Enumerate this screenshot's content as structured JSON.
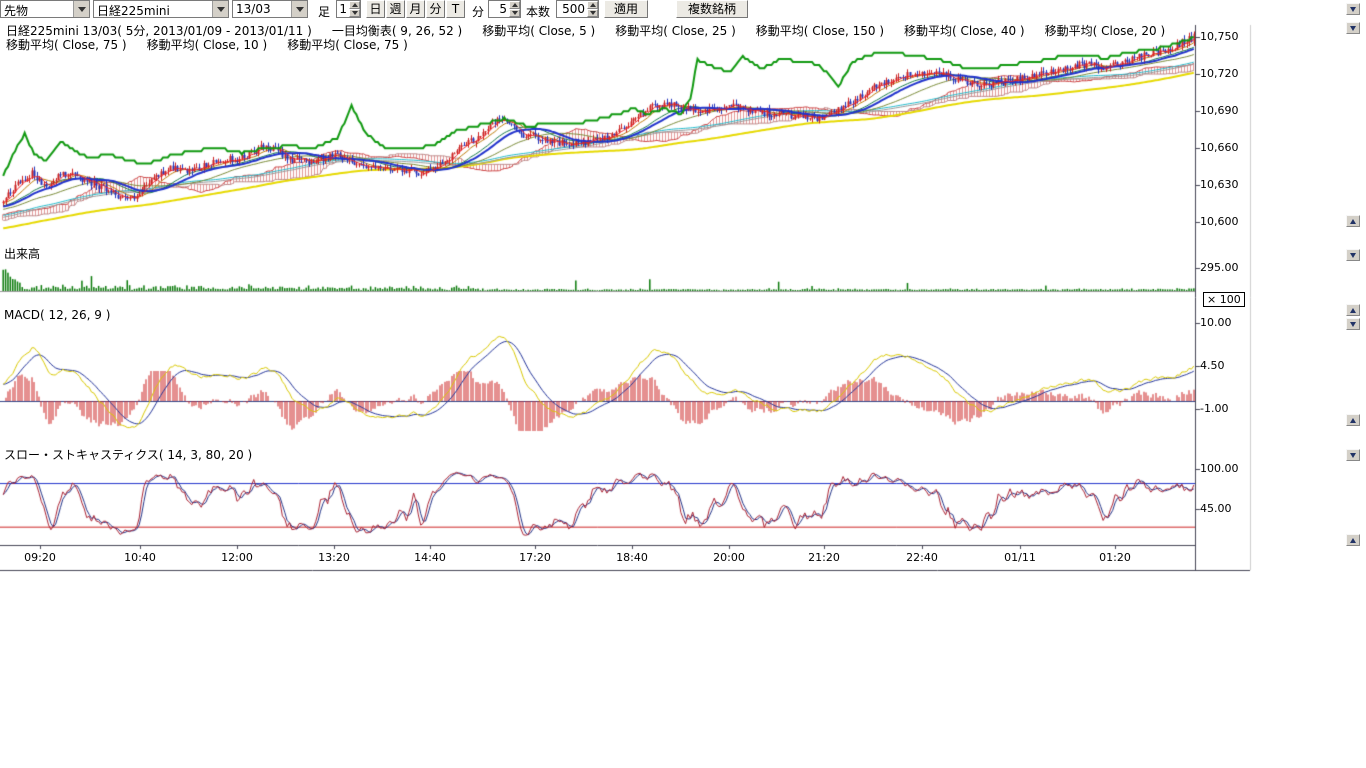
{
  "toolbar": {
    "instrument_type": "先物",
    "symbol": "日経225mini",
    "contract_month": "13/03",
    "bar_label": "足",
    "bar_step": "1",
    "period_buttons": [
      "日",
      "週",
      "月",
      "分",
      "T"
    ],
    "minute_label": "分",
    "minute_value": "5",
    "count_label": "本数",
    "count_value": "500",
    "apply_label": "適用",
    "multi_symbol_label": "複数銘柄"
  },
  "legend": {
    "series_title": "日経225mini 13/03( 5分, 2013/01/09 - 2013/01/11 )",
    "ichimoku": "一目均衡表( 9, 26, 52 )",
    "ma5": "移動平均( Close, 5 )",
    "ma25": "移動平均( Close, 25 )",
    "ma150": "移動平均( Close, 150 )",
    "ma40": "移動平均( Close, 40 )",
    "ma20": "移動平均( Close, 20 )",
    "ma75": "移動平均( Close, 75 )",
    "ma10": "移動平均( Close, 10 )",
    "ma75b": "移動平均( Close, 75 )"
  },
  "price_axis": [
    "10,750",
    "10,720",
    "10,690",
    "10,660",
    "10,630",
    "10,600"
  ],
  "volume": {
    "label": "出来高",
    "tick": "295.00",
    "multiplier": "× 100"
  },
  "macd": {
    "label": "MACD( 12, 26, 9 )",
    "ticks": [
      "10.00",
      "4.50",
      "-1.00"
    ]
  },
  "stochastics": {
    "label": "スロー・ストキャスティクス( 14, 3, 80, 20 )",
    "ticks": [
      "100.00",
      "45.00"
    ]
  },
  "xaxis": [
    "09:20",
    "10:40",
    "12:00",
    "13:20",
    "14:40",
    "17:20",
    "18:40",
    "20:00",
    "21:20",
    "22:40",
    "01/11",
    "01:20"
  ],
  "colors": {
    "candle_up": "#cc2222",
    "candle_down": "#2233bb",
    "volume": "#0a7a0a",
    "ichimoku_cloud": "#cc4444",
    "ichimoku_span_b": "#bb8888",
    "green_line": "#119911",
    "ma5": "#ee2222",
    "ma10": "#bb7700",
    "ma20": "#117744",
    "ma25": "#2233cc",
    "ma40": "#778833",
    "ma75": "#22bbcc",
    "ma75b": "#999999",
    "ma150": "#e6d900",
    "macd_line": "#d8c800",
    "macd_signal": "#223399",
    "macd_hist": "#cc2222",
    "macd_zero": "#334488",
    "stoch_k": "#aa2233",
    "stoch_d": "#223388",
    "band_upper": "#2233cc",
    "band_lower": "#cc2222",
    "border": "#445"
  },
  "chart_data": {
    "type": "candlestick",
    "title": "日経225mini 13/03( 5分, 2013/01/09 - 2013/01/11 )",
    "interval": "5分",
    "date_range": "2013/01/09 - 2013/01/11",
    "bars": 500,
    "y_ticks": [
      10750,
      10720,
      10690,
      10660,
      10630,
      10600
    ],
    "y_range": [
      10592,
      10760
    ],
    "x_tick_labels": [
      "09:20",
      "10:40",
      "12:00",
      "13:20",
      "14:40",
      "17:20",
      "18:40",
      "20:00",
      "21:20",
      "22:40",
      "01/11",
      "01:20"
    ],
    "indicators": {
      "ichimoku": [
        9,
        26,
        52
      ],
      "moving_averages": [
        5,
        10,
        20,
        25,
        40,
        75,
        150
      ],
      "macd": [
        12,
        26,
        9
      ],
      "slow_stochastics": [
        14,
        3,
        80,
        20
      ]
    },
    "volume_axis": {
      "tick": 295,
      "multiplier": 100
    },
    "macd_axis": {
      "ticks": [
        10.0,
        4.5,
        -1.0
      ]
    },
    "stoch_axis": {
      "ticks": [
        100,
        45
      ],
      "bands": [
        80,
        20
      ]
    },
    "close_path": [
      [
        0,
        10616
      ],
      [
        6,
        10632
      ],
      [
        12,
        10640
      ],
      [
        18,
        10628
      ],
      [
        25,
        10640
      ],
      [
        32,
        10636
      ],
      [
        40,
        10630
      ],
      [
        48,
        10622
      ],
      [
        55,
        10618
      ],
      [
        62,
        10634
      ],
      [
        70,
        10645
      ],
      [
        78,
        10640
      ],
      [
        85,
        10646
      ],
      [
        92,
        10650
      ],
      [
        100,
        10652
      ],
      [
        108,
        10660
      ],
      [
        115,
        10658
      ],
      [
        122,
        10650
      ],
      [
        130,
        10650
      ],
      [
        140,
        10655
      ],
      [
        148,
        10648
      ],
      [
        158,
        10642
      ],
      [
        166,
        10644
      ],
      [
        175,
        10640
      ],
      [
        182,
        10645
      ],
      [
        190,
        10658
      ],
      [
        198,
        10668
      ],
      [
        205,
        10680
      ],
      [
        210,
        10684
      ],
      [
        216,
        10672
      ],
      [
        222,
        10670
      ],
      [
        230,
        10666
      ],
      [
        238,
        10662
      ],
      [
        246,
        10665
      ],
      [
        254,
        10670
      ],
      [
        262,
        10680
      ],
      [
        270,
        10692
      ],
      [
        278,
        10696
      ],
      [
        285,
        10692
      ],
      [
        292,
        10690
      ],
      [
        300,
        10692
      ],
      [
        308,
        10694
      ],
      [
        316,
        10690
      ],
      [
        324,
        10688
      ],
      [
        332,
        10686
      ],
      [
        340,
        10684
      ],
      [
        348,
        10688
      ],
      [
        356,
        10698
      ],
      [
        364,
        10708
      ],
      [
        372,
        10716
      ],
      [
        380,
        10720
      ],
      [
        388,
        10722
      ],
      [
        396,
        10718
      ],
      [
        404,
        10712
      ],
      [
        412,
        10712
      ],
      [
        420,
        10714
      ],
      [
        428,
        10716
      ],
      [
        436,
        10720
      ],
      [
        444,
        10724
      ],
      [
        452,
        10728
      ],
      [
        460,
        10726
      ],
      [
        468,
        10728
      ],
      [
        476,
        10734
      ],
      [
        484,
        10738
      ],
      [
        492,
        10744
      ],
      [
        499,
        10750
      ]
    ],
    "green_line_path": [
      [
        0,
        10638
      ],
      [
        5,
        10658
      ],
      [
        9,
        10672
      ],
      [
        13,
        10655
      ],
      [
        18,
        10650
      ],
      [
        24,
        10666
      ],
      [
        30,
        10658
      ],
      [
        36,
        10652
      ],
      [
        44,
        10655
      ],
      [
        52,
        10650
      ],
      [
        60,
        10647
      ],
      [
        70,
        10654
      ],
      [
        80,
        10658
      ],
      [
        90,
        10660
      ],
      [
        100,
        10656
      ],
      [
        110,
        10660
      ],
      [
        120,
        10662
      ],
      [
        130,
        10660
      ],
      [
        140,
        10668
      ],
      [
        146,
        10694
      ],
      [
        152,
        10672
      ],
      [
        160,
        10660
      ],
      [
        170,
        10660
      ],
      [
        180,
        10662
      ],
      [
        190,
        10674
      ],
      [
        200,
        10679
      ],
      [
        210,
        10684
      ],
      [
        220,
        10678
      ],
      [
        230,
        10680
      ],
      [
        240,
        10680
      ],
      [
        250,
        10684
      ],
      [
        258,
        10688
      ],
      [
        264,
        10692
      ],
      [
        270,
        10688
      ],
      [
        277,
        10692
      ],
      [
        284,
        10688
      ],
      [
        288,
        10700
      ],
      [
        291,
        10732
      ],
      [
        298,
        10726
      ],
      [
        305,
        10722
      ],
      [
        310,
        10735
      ],
      [
        318,
        10724
      ],
      [
        326,
        10733
      ],
      [
        334,
        10730
      ],
      [
        342,
        10728
      ],
      [
        350,
        10710
      ],
      [
        356,
        10730
      ],
      [
        364,
        10736
      ],
      [
        372,
        10738
      ],
      [
        382,
        10735
      ],
      [
        392,
        10732
      ],
      [
        402,
        10726
      ],
      [
        412,
        10724
      ],
      [
        422,
        10728
      ],
      [
        432,
        10730
      ],
      [
        442,
        10734
      ],
      [
        452,
        10736
      ],
      [
        462,
        10733
      ],
      [
        472,
        10738
      ],
      [
        482,
        10740
      ],
      [
        490,
        10744
      ],
      [
        499,
        10750
      ]
    ]
  }
}
